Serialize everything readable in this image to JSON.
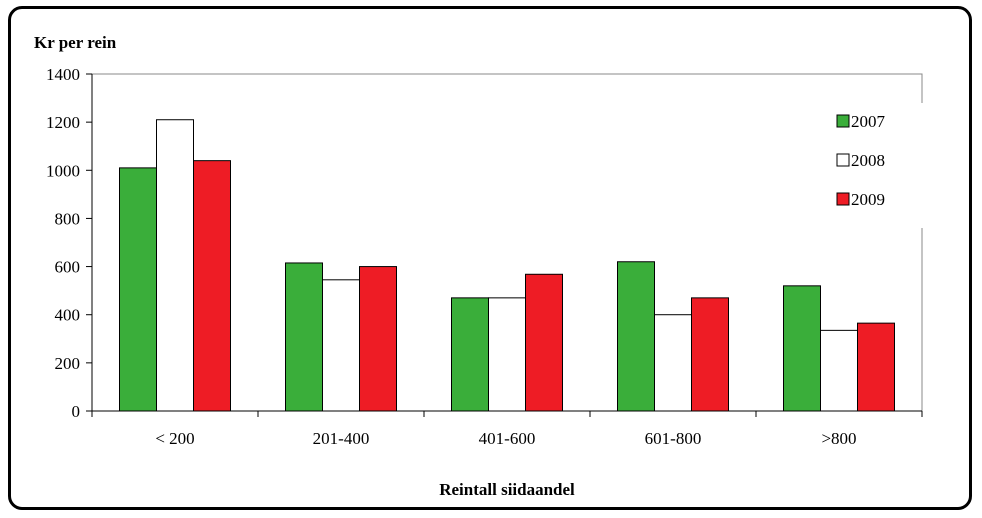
{
  "chart_data": {
    "type": "bar",
    "ylabel": "Kr per rein",
    "xlabel": "Reintall siidaandel",
    "categories": [
      "< 200",
      "201-400",
      "401-600",
      "601-800",
      ">800"
    ],
    "ylim": [
      0,
      1400
    ],
    "yticks": [
      0,
      200,
      400,
      600,
      800,
      1000,
      1200,
      1400
    ],
    "grid": false,
    "legend_position": "right",
    "series": [
      {
        "name": "2007",
        "color": "#3aae3a",
        "values": [
          1010,
          615,
          470,
          620,
          520
        ]
      },
      {
        "name": "2008",
        "color": "#ffffff",
        "values": [
          1210,
          545,
          470,
          400,
          335
        ]
      },
      {
        "name": "2009",
        "color": "#ee1c25",
        "values": [
          1040,
          600,
          568,
          470,
          365
        ]
      }
    ]
  }
}
